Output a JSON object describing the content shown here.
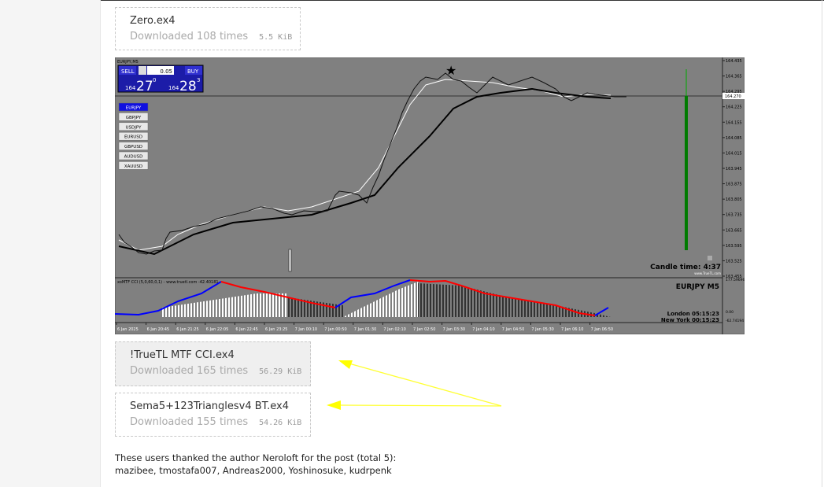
{
  "attachments": [
    {
      "name": "Zero.ex4",
      "downloads": "Downloaded 108 times",
      "size": "5.5 KiB"
    },
    {
      "name": "!TrueTL MTF CCI.ex4",
      "downloads": "Downloaded 165 times",
      "size": "56.29 KiB"
    },
    {
      "name": "Sema5+123Trianglesv4 BT.ex4",
      "downloads": "Downloaded 155 times",
      "size": "54.26 KiB"
    }
  ],
  "chart_image": {
    "symbol_header": "EURJPY,M5",
    "sell_label": "SELL",
    "buy_label": "BUY",
    "lot": "0.05",
    "sell_price": {
      "prefix": "164",
      "big": "27",
      "sup": "0"
    },
    "buy_price": {
      "prefix": "164",
      "big": "28",
      "sup": "3"
    },
    "symbols": [
      "EURJPY",
      "GBPJPY",
      "USDJPY",
      "EURUSD",
      "GBPUSD",
      "AUDUSD",
      "XAUUSD"
    ],
    "price_labels": [
      "164.435",
      "164.365",
      "164.295",
      "164.225",
      "164.155",
      "164.085",
      "164.015",
      "163.945",
      "163.875",
      "163.805",
      "163.735",
      "163.665",
      "163.595",
      "163.525",
      "163.455"
    ],
    "current_price": "164.270",
    "candle_time": "Candle time:  4:37",
    "watermark": "www.TrueTL.com",
    "indicator_title": "xoMTF CCI (5,0,60,0,1) - www.truetl.com -42.40181",
    "indicator_labels": [
      "177.59696",
      "0.00",
      "-62.74194"
    ],
    "pair_label": "EURJPY  M5",
    "london": "London   05:15:23",
    "new_york": "New York   00:15:23",
    "time_labels": [
      "6 Jan 2025",
      "6 Jan 20:45",
      "6 Jan 21:25",
      "6 Jan 22:05",
      "6 Jan 22:45",
      "6 Jan 23:25",
      "7 Jan 00:10",
      "7 Jan 00:50",
      "7 Jan 01:30",
      "7 Jan 02:10",
      "7 Jan 02:50",
      "7 Jan 03:30",
      "7 Jan 04:10",
      "7 Jan 04:50",
      "7 Jan 05:30",
      "7 Jan 06:10",
      "7 Jan 06:50"
    ]
  },
  "thanks": {
    "text": "These users thanked the author Neroloft for the post (total 5):",
    "users": "mazibee, tmostafa007, Andreas2000, Yoshinosuke, kudrpenk"
  }
}
